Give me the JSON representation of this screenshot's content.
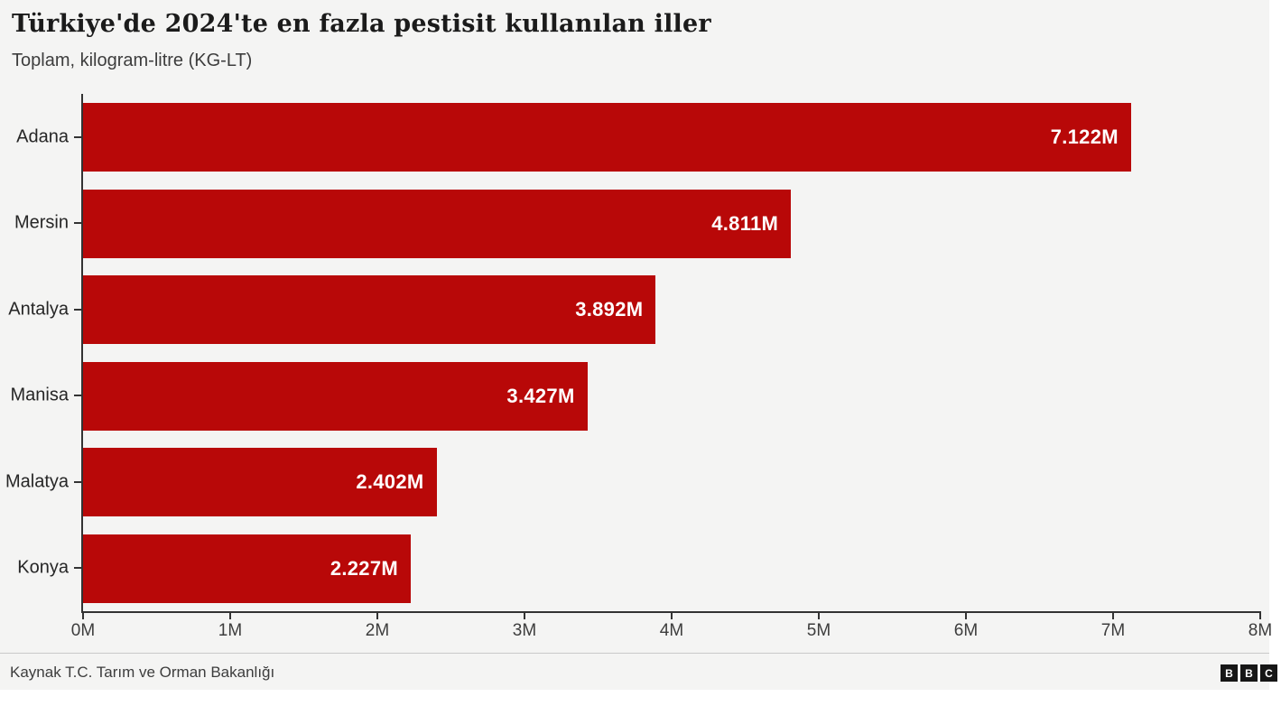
{
  "title": "Türkiye'de 2024'te en fazla pestisit kullanılan iller",
  "subtitle": "Toplam, kilogram-litre (KG-LT)",
  "chart_data": {
    "type": "bar",
    "orientation": "horizontal",
    "title": "Türkiye'de 2024'te en fazla pestisit kullanılan iller",
    "subtitle": "Toplam, kilogram-litre (KG-LT)",
    "categories": [
      "Adana",
      "Mersin",
      "Antalya",
      "Manisa",
      "Malatya",
      "Konya"
    ],
    "values": [
      7122000,
      4811000,
      3892000,
      3427000,
      2402000,
      2227000
    ],
    "value_labels": [
      "7.122M",
      "4.811M",
      "3.892M",
      "3.427M",
      "2.402M",
      "2.227M"
    ],
    "x_ticks": [
      "0M",
      "1M",
      "2M",
      "3M",
      "4M",
      "5M",
      "6M",
      "7M",
      "8M"
    ],
    "xlim": [
      0,
      8000000
    ],
    "xlabel": "",
    "ylabel": "",
    "grid": false,
    "legend": false,
    "value_label_position": "inside-end"
  },
  "colors": {
    "bar": "#b80808",
    "background": "#f4f4f3",
    "axis": "#333333",
    "logo": "#161616"
  },
  "footer": {
    "source": "Kaynak T.C. Tarım ve Orman Bakanlığı",
    "logo_letters": [
      "B",
      "B",
      "C"
    ]
  }
}
